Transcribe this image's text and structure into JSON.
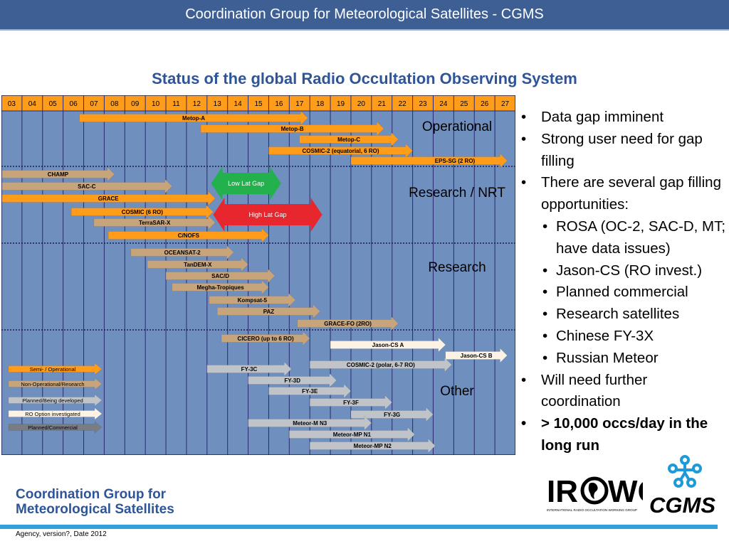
{
  "header": {
    "title": "Coordination Group for Meteorological Satellites - CGMS"
  },
  "subtitle": "Status of the global Radio Occultation Observing System",
  "chart_data": {
    "type": "gantt",
    "years": [
      "03",
      "04",
      "05",
      "06",
      "07",
      "08",
      "09",
      "10",
      "11",
      "12",
      "13",
      "14",
      "15",
      "16",
      "17",
      "18",
      "19",
      "20",
      "21",
      "22",
      "23",
      "24",
      "25",
      "26",
      "27"
    ],
    "groups": [
      {
        "name": "Operational",
        "rows": [
          {
            "label": "Metop-A",
            "start": 2006.8,
            "end": 2017.9,
            "status": "semi_operational"
          },
          {
            "label": "Metop-B",
            "start": 2012.7,
            "end": 2021.6,
            "status": "semi_operational"
          },
          {
            "label": "Metop-C",
            "start": 2017.5,
            "end": 2022.3,
            "status": "semi_operational"
          },
          {
            "label": "COSMIC-2 (equatorial, 6 RO)",
            "start": 2016.0,
            "end": 2023.0,
            "status": "semi_operational"
          },
          {
            "label": "EPS-SG (2 RO)",
            "start": 2020.0,
            "end": 2027.6,
            "status": "semi_operational"
          }
        ]
      },
      {
        "name": "Research / NRT",
        "rows": [
          {
            "label": "CHAMP",
            "start": 2003.0,
            "end": 2008.5,
            "status": "non_operational"
          },
          {
            "label": "SAC-C",
            "start": 2003.0,
            "end": 2011.3,
            "status": "non_operational"
          },
          {
            "label": "GRACE",
            "start": 2003.0,
            "end": 2013.4,
            "status": "semi_operational"
          },
          {
            "label": "COSMIC (6 RO)",
            "start": 2006.4,
            "end": 2013.3,
            "status": "semi_operational"
          },
          {
            "label": "TerraSAR-X",
            "start": 2007.5,
            "end": 2013.4,
            "status": "non_operational"
          },
          {
            "label": "C/NOFS",
            "start": 2008.2,
            "end": 2016.0,
            "status": "semi_operational"
          }
        ]
      },
      {
        "name": "Research",
        "rows": [
          {
            "label": "OCEANSAT-2",
            "start": 2009.3,
            "end": 2014.3,
            "status": "non_operational"
          },
          {
            "label": "TanDEM-X",
            "start": 2010.1,
            "end": 2015.0,
            "status": "non_operational"
          },
          {
            "label": "SAC/D",
            "start": 2011.0,
            "end": 2016.3,
            "status": "non_operational"
          },
          {
            "label": "Megha-Tropiques",
            "start": 2011.3,
            "end": 2016.0,
            "status": "non_operational"
          },
          {
            "label": "Kompsat-5",
            "start": 2013.1,
            "end": 2017.3,
            "status": "non_operational"
          },
          {
            "label": "PAZ",
            "start": 2013.5,
            "end": 2018.5,
            "status": "non_operational"
          },
          {
            "label": "GRACE-FO (2RO)",
            "start": 2017.4,
            "end": 2022.3,
            "status": "non_operational"
          }
        ]
      },
      {
        "name": "Other",
        "rows": [
          {
            "label": "CICERO (up to 6 RO)",
            "start": 2013.7,
            "end": 2018.0,
            "status": "non_operational"
          },
          {
            "label": "Jason-CS A",
            "start": 2019.0,
            "end": 2024.6,
            "status": "ro_option"
          },
          {
            "label": "Jason-CS B",
            "start": 2024.6,
            "end": 2027.6,
            "status": "ro_option"
          },
          {
            "label": "COSMIC-2 (polar, 6-7 RO)",
            "start": 2018.0,
            "end": 2024.9,
            "status": "planned"
          },
          {
            "label": "FY-3C",
            "start": 2013.0,
            "end": 2017.1,
            "status": "planned"
          },
          {
            "label": "FY-3D",
            "start": 2015.0,
            "end": 2019.3,
            "status": "planned"
          },
          {
            "label": "FY-3E",
            "start": 2016.0,
            "end": 2020.0,
            "status": "planned"
          },
          {
            "label": "FY-3F",
            "start": 2018.0,
            "end": 2022.0,
            "status": "planned"
          },
          {
            "label": "FY-3G",
            "start": 2020.0,
            "end": 2024.0,
            "status": "planned"
          },
          {
            "label": "Meteor-M N3",
            "start": 2015.0,
            "end": 2021.0,
            "status": "planned"
          },
          {
            "label": "Meteor-MP N1",
            "start": 2017.0,
            "end": 2023.1,
            "status": "planned"
          },
          {
            "label": "Meteor-MP N2",
            "start": 2018.0,
            "end": 2024.1,
            "status": "planned"
          }
        ]
      }
    ],
    "gap_markers": [
      {
        "label": "Low Lat Gap",
        "start": 2013.2,
        "end": 2016.6,
        "color": "#22b14c"
      },
      {
        "label": "High Lat Gap",
        "start": 2013.3,
        "end": 2018.6,
        "color": "#e8262e"
      }
    ],
    "legend": [
      {
        "key": "semi_operational",
        "label": "Semi- / Operational",
        "color": "#ff9c1a"
      },
      {
        "key": "non_operational",
        "label": "Non-Operational/Research",
        "color": "#c8a47a"
      },
      {
        "key": "planned",
        "label": "Planned/Being developed",
        "color": "#c0c4c8"
      },
      {
        "key": "ro_option",
        "label": "RO Option investigated",
        "color": "#fdf3e4"
      },
      {
        "key": "planned_commercial",
        "label": "Planned/Commercial",
        "color": "#7a7c84"
      }
    ],
    "colors": {
      "background": "#6f8fbf",
      "year_header": "#ff9c1a",
      "grid": "#2a2a6e",
      "text": "#000000"
    }
  },
  "bullets": [
    {
      "level": 1,
      "text": "Data gap imminent",
      "bold": false
    },
    {
      "level": 1,
      "text": "Strong user need for gap filling",
      "bold": false
    },
    {
      "level": 1,
      "text": "There are several gap filling opportunities:",
      "bold": false
    },
    {
      "level": 2,
      "text": "ROSA (OC-2, SAC-D, MT; have data issues)",
      "bold": false
    },
    {
      "level": 2,
      "text": "Jason-CS (RO invest.)",
      "bold": false
    },
    {
      "level": 2,
      "text": "Planned commercial",
      "bold": false
    },
    {
      "level": 2,
      "text": "Research satellites",
      "bold": false
    },
    {
      "level": 2,
      "text": "Chinese FY-3X",
      "bold": false
    },
    {
      "level": 2,
      "text": "Russian Meteor",
      "bold": false
    },
    {
      "level": 1,
      "text": "Will need further coordination",
      "bold": false
    },
    {
      "level": 1,
      "text": "> 10,000 occs/day in the long run",
      "bold": true
    }
  ],
  "footer_logo": {
    "line1": "Coordination Group for",
    "line2": "Meteorological Satellites"
  },
  "footer_text": "Agency, version?,  Date 2012",
  "logos": {
    "irowg": "IROWG",
    "irowg_sub": "INTERNATIONAL RADIO OCCULTATION WORKING GROUP",
    "cgms": "CGMS"
  }
}
